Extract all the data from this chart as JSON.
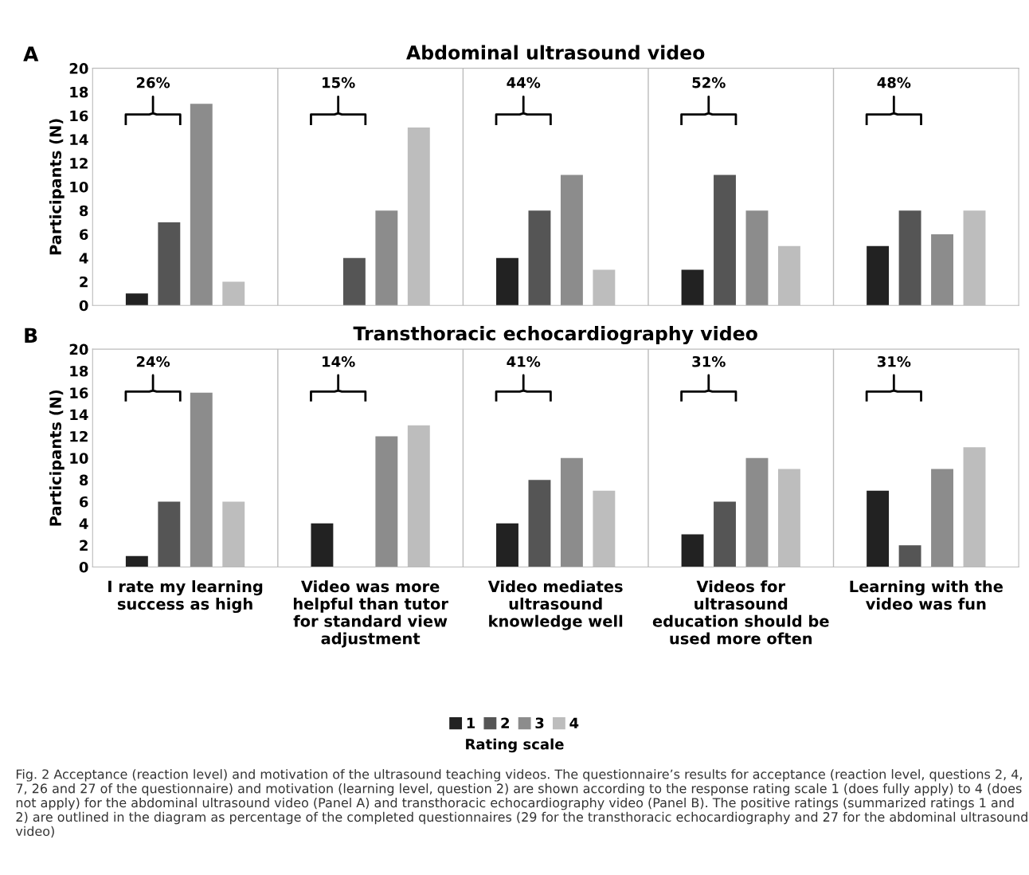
{
  "chart_data": [
    {
      "type": "bar",
      "title": "Abdominal ultrasound video",
      "ylabel": "Participants (N)",
      "legend_title": "Rating scale",
      "categories": [
        null,
        null,
        null,
        null,
        null
      ],
      "series": [
        {
          "name": "1",
          "color": "#222222",
          "values": [
            1,
            0,
            4,
            3,
            5
          ]
        },
        {
          "name": "2",
          "color": "#555555",
          "values": [
            7,
            4,
            8,
            11,
            8
          ]
        },
        {
          "name": "3",
          "color": "#8c8c8c",
          "values": [
            17,
            8,
            11,
            8,
            6
          ]
        },
        {
          "name": "4",
          "color": "#bdbdbd",
          "values": [
            2,
            15,
            3,
            5,
            8
          ]
        }
      ],
      "ylim": [
        0,
        20
      ],
      "yticks": [
        0,
        2,
        4,
        6,
        8,
        10,
        12,
        14,
        16,
        18,
        20
      ],
      "grid": "x",
      "legend": "bottom",
      "annotations": [
        "A",
        "26%",
        "15%",
        "44%",
        "52%",
        "48%"
      ]
    },
    {
      "type": "bar",
      "title": "Transthoracic echocardiography video",
      "ylabel": "Participants (N)",
      "categories": [
        "I rate my learning success as high",
        "Video was more helpful than tutor for standard view adjustment",
        "Video mediates ultrasound knowledge well",
        "Videos for ultrasound education should be used more often",
        "Learning with the video was fun"
      ],
      "series": [
        {
          "name": "1",
          "color": "#222222",
          "values": [
            1,
            4,
            4,
            3,
            7
          ]
        },
        {
          "name": "2",
          "color": "#555555",
          "values": [
            6,
            0,
            8,
            6,
            2
          ]
        },
        {
          "name": "3",
          "color": "#8c8c8c",
          "values": [
            16,
            12,
            10,
            10,
            9
          ]
        },
        {
          "name": "4",
          "color": "#bdbdbd",
          "values": [
            6,
            13,
            7,
            9,
            11
          ]
        }
      ],
      "ylim": [
        0,
        20
      ],
      "yticks": [
        0,
        2,
        4,
        6,
        8,
        10,
        12,
        14,
        16,
        18,
        20
      ],
      "grid": "x",
      "legend": "bottom",
      "annotations": [
        "B",
        "24%",
        "14%",
        "41%",
        "31%",
        "31%",
        "Fig. 2 Acceptance (reaction level) and motivation of the ultrasound teaching videos. The questionnaire’s results for acceptance (reaction level, questions 2, 4, 7, 26 and 27 of the questionnaire) and motivation (learning level, question 2) are shown according to the response rating scale 1 (does fully apply) to 4 (does not apply) for the abdominal ultrasound video (Panel A) and transthoracic echocardiography video (Panel B). The positive ratings (summarized ratings 1 and 2) are outlined in the diagram as percentage of the completed questionnaires (29 for the transthoracic echocardiography and 27 for the abdominal ultrasound video)"
      ]
    }
  ]
}
